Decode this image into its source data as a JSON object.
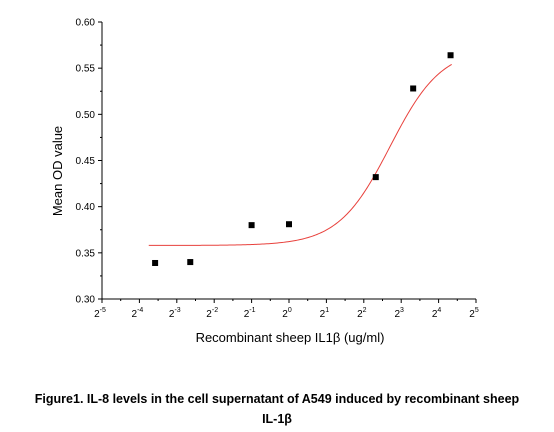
{
  "chart_data": {
    "type": "scatter",
    "title": "",
    "xlabel": "Recombinant sheep IL1β (ug/ml)",
    "ylabel": "Mean OD value",
    "x_scale": "log2",
    "x_tick_base": "2",
    "x_tick_exponents": [
      "-5",
      "-4",
      "-3",
      "-2",
      "-1",
      "0",
      "1",
      "2",
      "3",
      "4",
      "5"
    ],
    "xlim_exponent": [
      -5,
      5
    ],
    "ylim": [
      0.3,
      0.6
    ],
    "y_ticks": [
      "0.30",
      "0.35",
      "0.40",
      "0.45",
      "0.50",
      "0.55",
      "0.60"
    ],
    "grid": false,
    "legend": "none",
    "points": [
      {
        "x_exp": -3.58,
        "y": 0.339
      },
      {
        "x_exp": -2.64,
        "y": 0.34
      },
      {
        "x_exp": -1.0,
        "y": 0.38
      },
      {
        "x_exp": 0.0,
        "y": 0.381
      },
      {
        "x_exp": 2.32,
        "y": 0.432
      },
      {
        "x_exp": 3.32,
        "y": 0.528
      },
      {
        "x_exp": 4.32,
        "y": 0.564
      }
    ],
    "fit_curve": {
      "type": "sigmoid",
      "bottom": 0.358,
      "top": 0.572,
      "center_exp": 2.7,
      "slope": 1.45,
      "color": "#e8413c"
    },
    "marker_color": "#000000"
  },
  "caption": {
    "line1": "Figure1. IL-8 levels in the cell supernatant of A549 induced by recombinant sheep",
    "line2": "IL-1β"
  }
}
